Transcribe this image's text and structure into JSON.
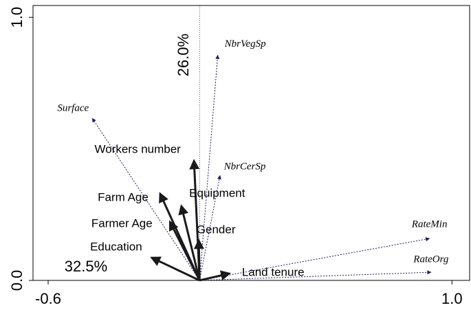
{
  "chart_data": {
    "type": "biplot",
    "xlim": [
      -0.66,
      1.07
    ],
    "ylim": [
      0,
      1.045
    ],
    "xticks": [
      -0.6,
      {
        "value": 1,
        "label": "1.0"
      }
    ],
    "yticks": [
      {
        "value": 0,
        "label": "0.0"
      },
      {
        "value": 1,
        "label": "1.0"
      }
    ],
    "x_axis_annotation": "32.5%",
    "y_axis_annotation": "26.0%",
    "variables": {
      "color": "#1a1a1a",
      "labels": [
        "Workers number",
        "Farm Age",
        "Equipment",
        "Farmer Age",
        "Gender",
        "Education",
        "Land tenure"
      ],
      "x": [
        -0.022,
        -0.156,
        -0.072,
        -0.117,
        -0.003,
        -0.189,
        0.117
      ],
      "y": [
        0.454,
        0.329,
        0.282,
        0.222,
        0.151,
        0.086,
        0.026
      ]
    },
    "species": {
      "color": "#1a1a5e",
      "labels": [
        "NbrVegSp",
        "Surface",
        "NbrCerSp",
        "RateMin",
        "RateOrg"
      ],
      "x": [
        0.072,
        -0.425,
        0.081,
        0.911,
        0.917
      ],
      "y": [
        0.856,
        0.616,
        0.399,
        0.159,
        0.031
      ]
    }
  }
}
